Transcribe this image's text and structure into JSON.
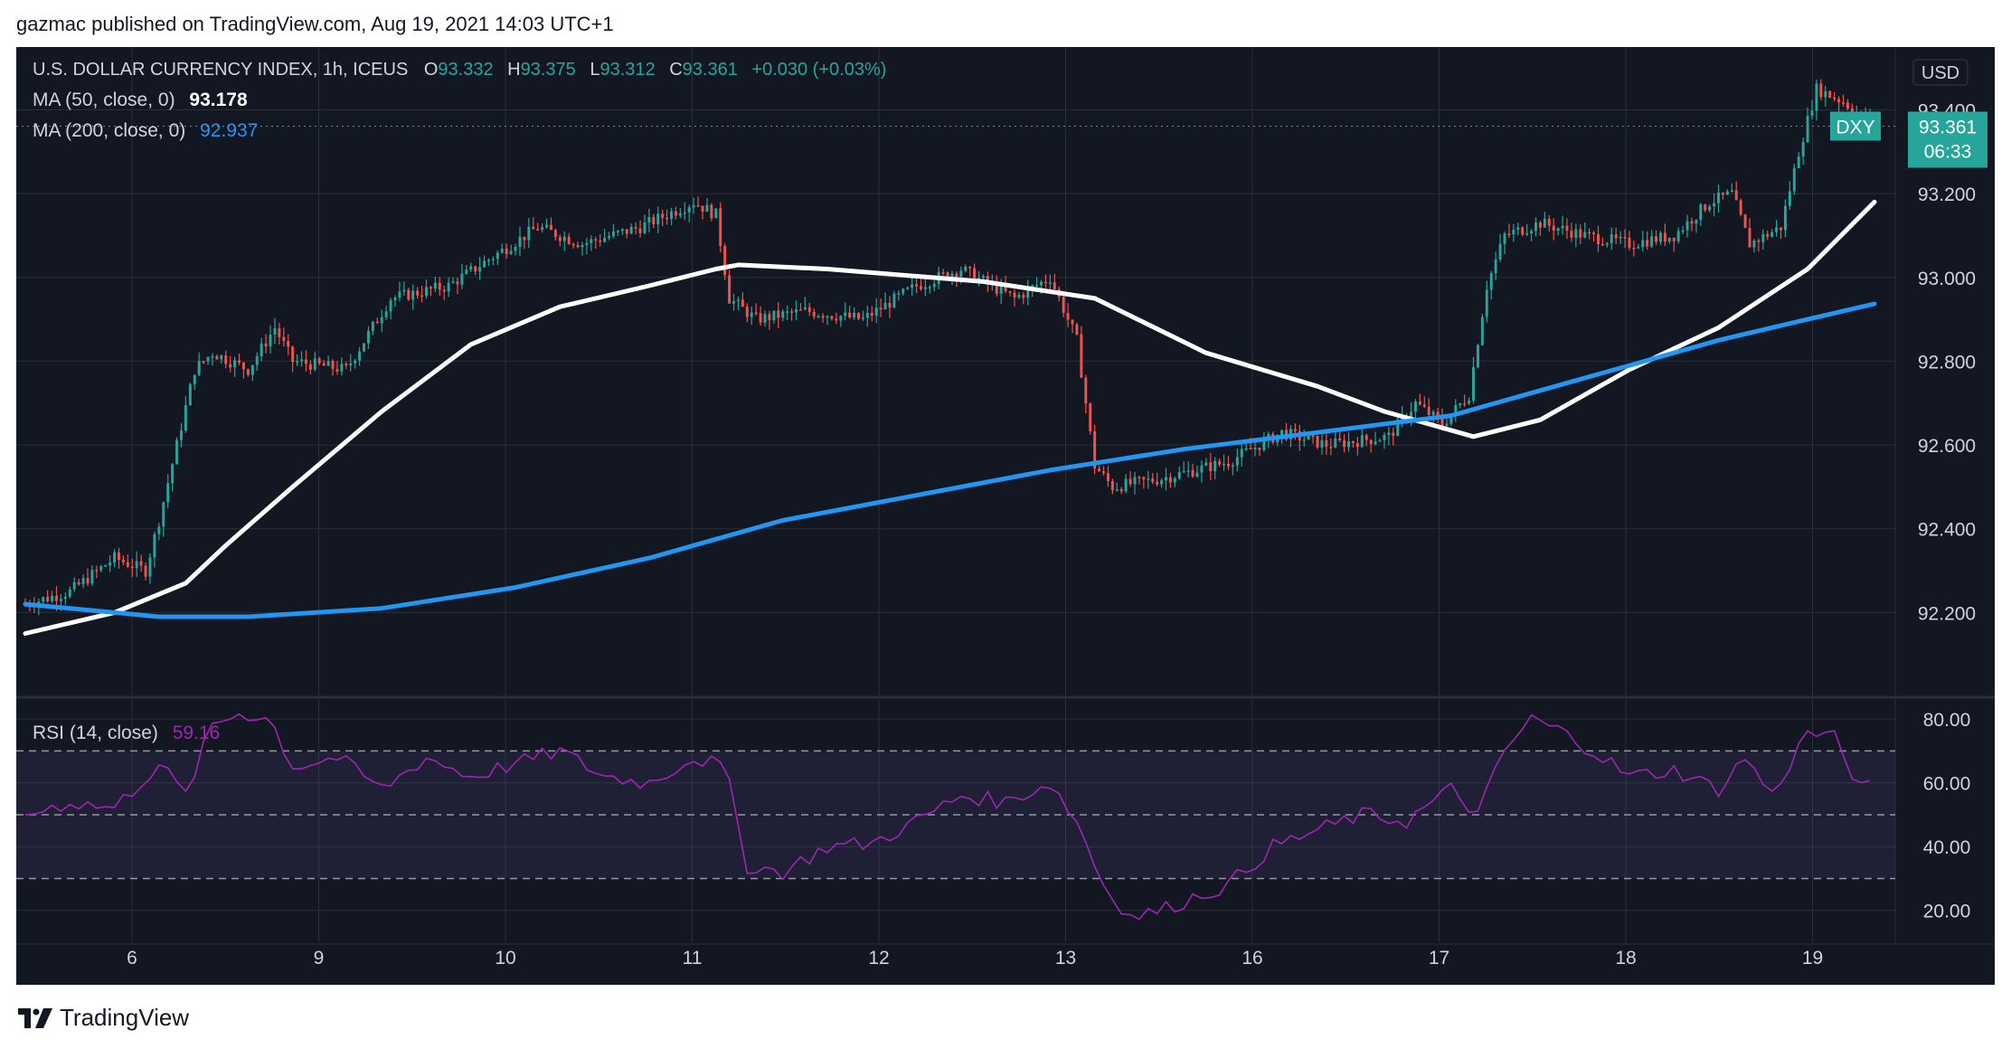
{
  "header": {
    "published": "gazmac published on TradingView.com, Aug 19, 2021 14:03 UTC+1"
  },
  "footer": {
    "brand": "TradingView",
    "logo_icon": "tradingview-logo-icon"
  },
  "legend": {
    "symbol": "U.S. DOLLAR CURRENCY INDEX, 1h, ICEUS",
    "o_label": "O",
    "o_value": "93.332",
    "h_label": "H",
    "h_value": "93.375",
    "l_label": "L",
    "l_value": "93.312",
    "c_label": "C",
    "c_value": "93.361",
    "change": "+0.030 (+0.03%)",
    "ma50_label": "MA (50, close, 0)",
    "ma50_value": "93.178",
    "ma200_label": "MA (200, close, 0)",
    "ma200_value": "92.937",
    "rsi_label": "RSI (14, close)",
    "rsi_value": "59.16"
  },
  "badges": {
    "currency": "USD",
    "symbol": "DXY",
    "price": "93.361",
    "countdown": "06:33"
  },
  "colors": {
    "background": "#131722",
    "grid": "#2a2e39",
    "text": "#d1d4dc",
    "up": "#26a69a",
    "down": "#ef5350",
    "ma50": "#ffffff",
    "ma200": "#2196f3",
    "rsi": "#9c27b0",
    "rsi_band": "#7e57c2"
  },
  "chart_data": [
    {
      "type": "candlestick",
      "title": "U.S. DOLLAR CURRENCY INDEX, 1h, ICEUS",
      "x_ticks": [
        "6",
        "9",
        "10",
        "11",
        "12",
        "13",
        "16",
        "17",
        "18",
        "19"
      ],
      "y_ticks": [
        "92.200",
        "92.400",
        "92.600",
        "92.800",
        "93.000",
        "93.200",
        "93.400"
      ],
      "ylim": [
        92.0,
        93.55
      ],
      "price_path": [
        [
          0,
          92.22
        ],
        [
          10,
          92.25
        ],
        [
          20,
          92.33
        ],
        [
          27,
          92.3
        ],
        [
          30,
          92.42
        ],
        [
          38,
          92.78
        ],
        [
          42,
          92.82
        ],
        [
          50,
          92.78
        ],
        [
          56,
          92.88
        ],
        [
          60,
          92.8
        ],
        [
          72,
          92.78
        ],
        [
          82,
          92.95
        ],
        [
          95,
          92.98
        ],
        [
          105,
          93.05
        ],
        [
          115,
          93.12
        ],
        [
          125,
          93.08
        ],
        [
          138,
          93.12
        ],
        [
          150,
          93.18
        ],
        [
          155,
          93.15
        ],
        [
          158,
          92.95
        ],
        [
          164,
          92.9
        ],
        [
          175,
          92.92
        ],
        [
          188,
          92.9
        ],
        [
          200,
          92.98
        ],
        [
          210,
          93.02
        ],
        [
          222,
          92.95
        ],
        [
          230,
          93.0
        ],
        [
          236,
          92.85
        ],
        [
          240,
          92.55
        ],
        [
          244,
          92.5
        ],
        [
          255,
          92.52
        ],
        [
          270,
          92.56
        ],
        [
          282,
          92.63
        ],
        [
          292,
          92.6
        ],
        [
          306,
          92.62
        ],
        [
          312,
          92.7
        ],
        [
          318,
          92.65
        ],
        [
          324,
          92.72
        ],
        [
          328,
          92.98
        ],
        [
          332,
          93.1
        ],
        [
          340,
          93.13
        ],
        [
          350,
          93.1
        ],
        [
          360,
          93.08
        ],
        [
          370,
          93.1
        ],
        [
          378,
          93.18
        ],
        [
          383,
          93.2
        ],
        [
          387,
          93.08
        ],
        [
          394,
          93.12
        ],
        [
          398,
          93.3
        ],
        [
          402,
          93.45
        ],
        [
          408,
          93.42
        ],
        [
          415,
          93.36
        ]
      ],
      "series": [
        {
          "name": "MA (50, close, 0)",
          "points": [
            [
              0,
              92.15
            ],
            [
              20,
              92.2
            ],
            [
              36,
              92.27
            ],
            [
              45,
              92.36
            ],
            [
              60,
              92.5
            ],
            [
              80,
              92.68
            ],
            [
              100,
              92.84
            ],
            [
              120,
              92.93
            ],
            [
              140,
              92.98
            ],
            [
              155,
              93.02
            ],
            [
              160,
              93.03
            ],
            [
              180,
              93.02
            ],
            [
              215,
              92.99
            ],
            [
              240,
              92.95
            ],
            [
              265,
              92.82
            ],
            [
              290,
              92.74
            ],
            [
              305,
              92.68
            ],
            [
              325,
              92.62
            ],
            [
              340,
              92.66
            ],
            [
              360,
              92.78
            ],
            [
              380,
              92.88
            ],
            [
              400,
              93.02
            ],
            [
              415,
              93.18
            ]
          ]
        },
        {
          "name": "MA (200, close, 0)",
          "points": [
            [
              0,
              92.22
            ],
            [
              30,
              92.19
            ],
            [
              50,
              92.19
            ],
            [
              80,
              92.21
            ],
            [
              110,
              92.26
            ],
            [
              140,
              92.33
            ],
            [
              170,
              92.42
            ],
            [
              200,
              92.48
            ],
            [
              230,
              92.54
            ],
            [
              260,
              92.59
            ],
            [
              290,
              92.63
            ],
            [
              320,
              92.67
            ],
            [
              340,
              92.73
            ],
            [
              360,
              92.79
            ],
            [
              380,
              92.85
            ],
            [
              400,
              92.9
            ],
            [
              415,
              92.937
            ]
          ]
        }
      ]
    },
    {
      "type": "line",
      "title": "RSI (14, close)",
      "y_ticks": [
        "20.00",
        "40.00",
        "60.00",
        "80.00"
      ],
      "ylim": [
        10,
        86
      ],
      "bands": [
        30,
        50,
        70
      ],
      "series": [
        {
          "name": "RSI (14, close)",
          "points": [
            [
              0,
              50
            ],
            [
              10,
              54
            ],
            [
              20,
              52
            ],
            [
              30,
              66
            ],
            [
              36,
              56
            ],
            [
              42,
              78
            ],
            [
              48,
              82
            ],
            [
              55,
              80
            ],
            [
              60,
              65
            ],
            [
              70,
              68
            ],
            [
              80,
              58
            ],
            [
              90,
              68
            ],
            [
              100,
              62
            ],
            [
              110,
              66
            ],
            [
              120,
              70
            ],
            [
              130,
              62
            ],
            [
              140,
              60
            ],
            [
              150,
              68
            ],
            [
              157,
              65
            ],
            [
              162,
              34
            ],
            [
              170,
              32
            ],
            [
              180,
              40
            ],
            [
              190,
              41
            ],
            [
              200,
              48
            ],
            [
              210,
              56
            ],
            [
              220,
              54
            ],
            [
              230,
              60
            ],
            [
              236,
              48
            ],
            [
              242,
              28
            ],
            [
              248,
              18
            ],
            [
              255,
              20
            ],
            [
              262,
              24
            ],
            [
              270,
              28
            ],
            [
              280,
              40
            ],
            [
              290,
              45
            ],
            [
              300,
              50
            ],
            [
              310,
              48
            ],
            [
              320,
              58
            ],
            [
              326,
              50
            ],
            [
              332,
              70
            ],
            [
              338,
              80
            ],
            [
              345,
              76
            ],
            [
              352,
              70
            ],
            [
              360,
              62
            ],
            [
              370,
              64
            ],
            [
              380,
              58
            ],
            [
              386,
              68
            ],
            [
              392,
              56
            ],
            [
              400,
              76
            ],
            [
              406,
              74
            ],
            [
              412,
              58
            ],
            [
              416,
              59
            ]
          ]
        }
      ]
    }
  ]
}
